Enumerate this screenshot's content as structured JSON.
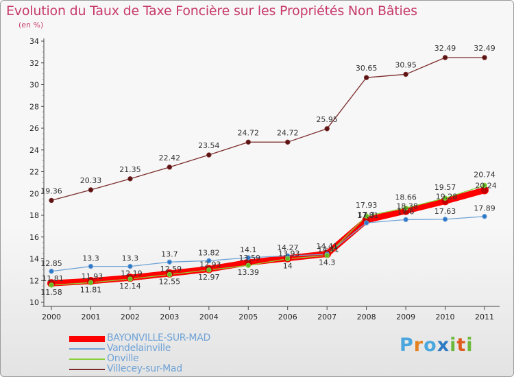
{
  "header": {
    "title": "Evolution du Taux de Taxe Foncière sur les Propriétés Non Bâties",
    "unit_label": "(en %)"
  },
  "brand": {
    "text": "Proxiti",
    "letters": [
      "P",
      "r",
      "o",
      "x",
      "i",
      "t",
      "i"
    ],
    "letter_colors": [
      "#4aa6dc",
      "#e3801f",
      "#4aa6dc",
      "#2e7bc4",
      "#6cb83a",
      "#e05a1c",
      "#6cb83a"
    ]
  },
  "chart_data": {
    "type": "line",
    "title": "Evolution du Taux de Taxe Foncière sur les Propriétés Non Bâties",
    "xlabel": "",
    "ylabel": "(en %)",
    "x": [
      "2000",
      "2001",
      "2002",
      "2003",
      "2004",
      "2005",
      "2006",
      "2007",
      "2008",
      "2009",
      "2010",
      "2011"
    ],
    "ylim": [
      10,
      34
    ],
    "yticks": [
      10,
      12,
      14,
      16,
      18,
      20,
      22,
      24,
      26,
      28,
      30,
      32,
      34
    ],
    "grid": false,
    "legend_position": "bottom-left",
    "series": [
      {
        "name": "BAYONVILLE-SUR-MAD",
        "color": "#ff0000",
        "values": [
          11.75,
          11.95,
          12.25,
          12.65,
          13.05,
          13.65,
          14.05,
          14.45,
          17.55,
          18.4,
          19.3,
          20.3
        ]
      },
      {
        "name": "Vandelainville",
        "color": "#6fa2d6",
        "values": [
          12.85,
          13.3,
          13.3,
          13.7,
          13.82,
          14.1,
          14.27,
          14.41,
          17.3,
          17.6,
          17.63,
          17.89
        ],
        "labels": [
          "12.85",
          "13.3",
          "13.3",
          "13.7",
          "13.82",
          "14.1",
          "14.27",
          "14.41",
          "17.3",
          "17.6",
          "17.63",
          "17.89"
        ]
      },
      {
        "name": "Onville",
        "color": "#8ad03a",
        "values": [
          11.58,
          11.81,
          12.14,
          12.55,
          12.97,
          13.39,
          14.0,
          14.3,
          17.93,
          18.66,
          19.57,
          20.74
        ],
        "labels": [
          "11.58",
          "11.81",
          "12.14",
          "12.55",
          "12.97",
          "13.39",
          "14",
          "14.3",
          "17.93",
          "18.66",
          "19.57",
          "20.74"
        ]
      },
      {
        "name": "Villecey-sur-Mad",
        "color": "#7a2a2a",
        "values": [
          19.36,
          20.33,
          21.35,
          22.42,
          23.54,
          24.72,
          24.72,
          25.95,
          30.65,
          30.95,
          32.49,
          32.49
        ],
        "labels": [
          "19.36",
          "20.33",
          "21.35",
          "22.42",
          "23.54",
          "24.72",
          "24.72",
          "25.95",
          "30.65",
          "30.95",
          "32.49",
          "32.49"
        ]
      }
    ],
    "annotations": [
      "11.93",
      "12.19",
      "12.59",
      "12.93",
      "13.59",
      "13.93",
      "14.41",
      "17.81",
      "18.38",
      "19.28",
      "20.24",
      "11.81"
    ]
  }
}
